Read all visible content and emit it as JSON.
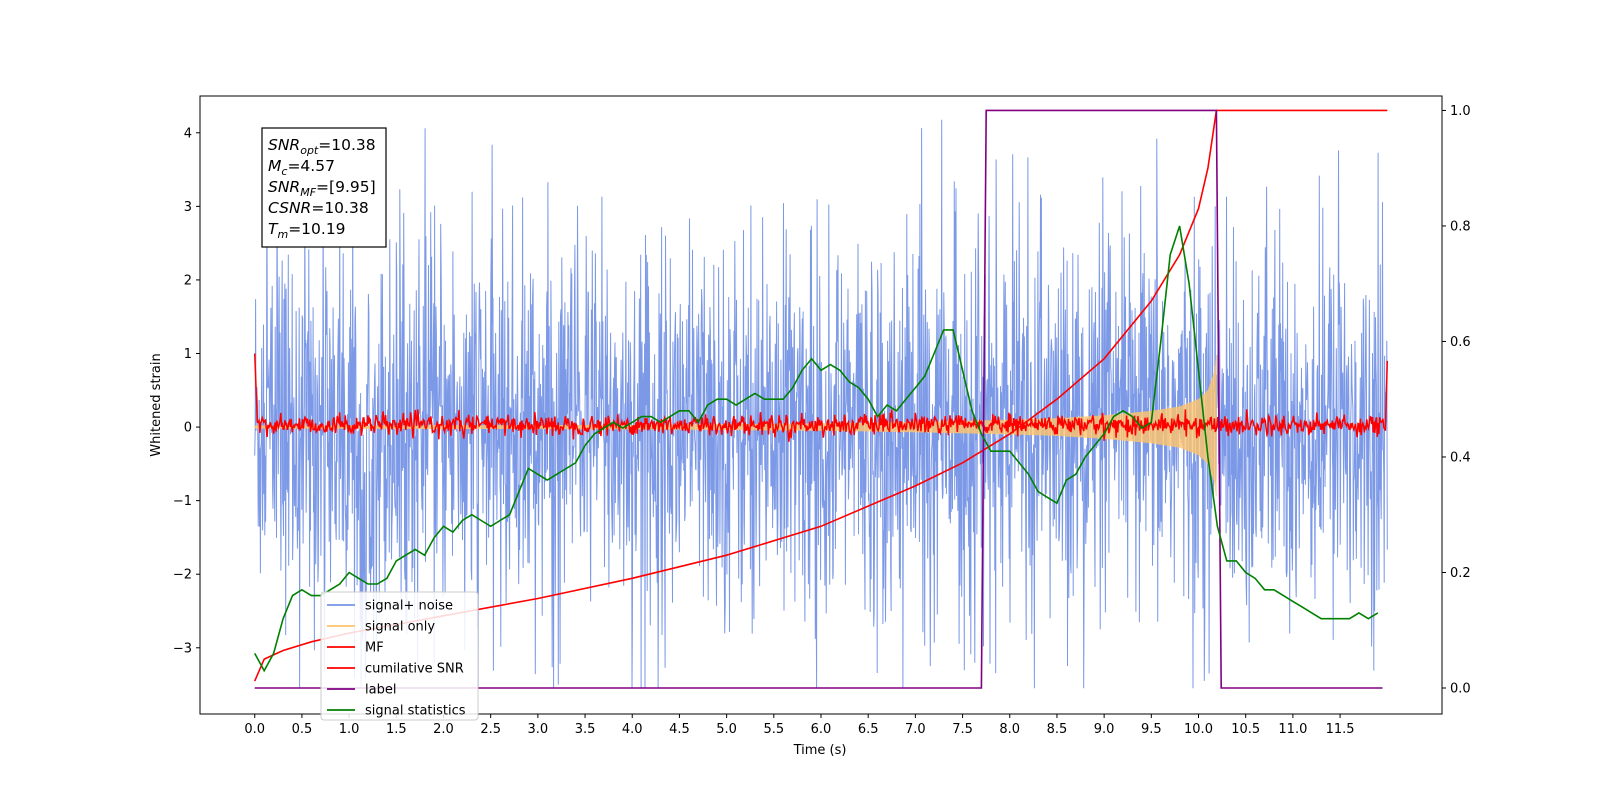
{
  "chart_data": {
    "type": "line",
    "xlabel": "Time (s)",
    "ylabel": "Whitened strain",
    "xlim": [
      -0.58,
      12.58
    ],
    "ylim": [
      -3.9,
      4.5
    ],
    "y2lim": [
      -0.045,
      1.025
    ],
    "x_ticks": [
      "0.0",
      "0.5",
      "1.0",
      "1.5",
      "2.0",
      "2.5",
      "3.0",
      "3.5",
      "4.0",
      "4.5",
      "5.0",
      "5.5",
      "6.0",
      "6.5",
      "7.0",
      "7.5",
      "8.0",
      "8.5",
      "9.0",
      "9.5",
      "10.0",
      "10.5",
      "11.0",
      "11.5"
    ],
    "x_tick_values": [
      0,
      0.5,
      1,
      1.5,
      2,
      2.5,
      3,
      3.5,
      4,
      4.5,
      5,
      5.5,
      6,
      6.5,
      7,
      7.5,
      8,
      8.5,
      9,
      9.5,
      10,
      10.5,
      11,
      11.5
    ],
    "y_ticks": [
      "−3",
      "−2",
      "−1",
      "0",
      "1",
      "2",
      "3",
      "4"
    ],
    "y_tick_values": [
      -3,
      -2,
      -1,
      0,
      1,
      2,
      3,
      4
    ],
    "y2_ticks": [
      "0.0",
      "0.2",
      "0.4",
      "0.6",
      "0.8",
      "1.0"
    ],
    "y2_tick_values": [
      0,
      0.2,
      0.4,
      0.6,
      0.8,
      1.0
    ],
    "annotation": [
      {
        "base": "SNR",
        "sub": "opt",
        "rest": "=10.38"
      },
      {
        "base": "M",
        "sub": "c",
        "rest": "=4.57"
      },
      {
        "base": "SNR",
        "sub": "MF",
        "rest": "=[9.95]"
      },
      {
        "base": "CSNR",
        "sub": "",
        "rest": "=10.38"
      },
      {
        "base": "T",
        "sub": "m",
        "rest": "=10.19"
      }
    ],
    "legend": {
      "placement": "lower-left",
      "entries": [
        {
          "label": "signal+ noise",
          "color": "#7594e6"
        },
        {
          "label": "signal only",
          "color": "#ffc46b"
        },
        {
          "label": "MF",
          "color": "#ff0000"
        },
        {
          "label": "cumilative SNR",
          "color": "#ff0000"
        },
        {
          "label": "label",
          "color": "#800080"
        },
        {
          "label": "signal statistics",
          "color": "#008000"
        }
      ]
    },
    "series": [
      {
        "name": "signal+ noise",
        "axis": "left",
        "color": "#7594e6",
        "description": "whitened noisy strain, approx ±1.5 sigma band, spikes to about ±4 over t=0.0–12.0 s"
      },
      {
        "name": "signal only",
        "axis": "left",
        "color": "#ffc46b",
        "envelope_x": [
          0,
          2,
          4,
          6,
          7,
          8,
          8.5,
          9,
          9.5,
          9.8,
          10.0,
          10.1,
          10.17,
          10.19
        ],
        "envelope_y": [
          0.02,
          0.025,
          0.03,
          0.05,
          0.07,
          0.1,
          0.12,
          0.16,
          0.22,
          0.28,
          0.38,
          0.5,
          0.75,
          0.98
        ]
      },
      {
        "name": "MF",
        "axis": "left",
        "color": "#ff0000",
        "description": "matched-filter output, noise around 0 within ±0.2, edge values about 1.0 at t=0 and 0.9 at t=12"
      },
      {
        "name": "cumilative SNR",
        "axis": "right",
        "color": "#ff0000",
        "x": [
          0,
          0.1,
          0.3,
          0.6,
          1.0,
          1.5,
          2.0,
          3.0,
          4.0,
          5.0,
          6.0,
          7.0,
          7.5,
          8.0,
          8.5,
          9.0,
          9.5,
          9.8,
          10.0,
          10.1,
          10.19,
          12.0
        ],
        "y": [
          0.012,
          0.05,
          0.065,
          0.08,
          0.095,
          0.11,
          0.125,
          0.155,
          0.19,
          0.23,
          0.28,
          0.35,
          0.39,
          0.44,
          0.5,
          0.57,
          0.67,
          0.75,
          0.83,
          0.9,
          1.0,
          1.0
        ]
      },
      {
        "name": "label",
        "axis": "right",
        "color": "#800080",
        "x": [
          0.0,
          7.7,
          7.75,
          10.19,
          10.24,
          11.95
        ],
        "y": [
          0,
          0,
          1,
          1,
          0,
          0
        ]
      },
      {
        "name": "signal statistics",
        "axis": "right",
        "color": "#008000",
        "x": [
          0.0,
          0.1,
          0.2,
          0.3,
          0.4,
          0.5,
          0.6,
          0.7,
          0.8,
          0.9,
          1.0,
          1.1,
          1.2,
          1.3,
          1.4,
          1.5,
          1.6,
          1.7,
          1.8,
          1.9,
          2.0,
          2.1,
          2.2,
          2.3,
          2.4,
          2.5,
          2.6,
          2.7,
          2.8,
          2.9,
          3.0,
          3.1,
          3.2,
          3.3,
          3.4,
          3.5,
          3.6,
          3.7,
          3.8,
          3.9,
          4.0,
          4.1,
          4.2,
          4.3,
          4.4,
          4.5,
          4.6,
          4.7,
          4.8,
          4.9,
          5.0,
          5.1,
          5.2,
          5.3,
          5.4,
          5.5,
          5.6,
          5.7,
          5.8,
          5.9,
          6.0,
          6.1,
          6.2,
          6.3,
          6.4,
          6.5,
          6.6,
          6.7,
          6.8,
          6.9,
          7.0,
          7.1,
          7.2,
          7.3,
          7.4,
          7.5,
          7.6,
          7.7,
          7.8,
          7.9,
          8.0,
          8.1,
          8.2,
          8.3,
          8.4,
          8.5,
          8.6,
          8.7,
          8.8,
          8.9,
          9.0,
          9.1,
          9.2,
          9.3,
          9.4,
          9.5,
          9.6,
          9.7,
          9.8,
          9.9,
          10.0,
          10.1,
          10.2,
          10.3,
          10.4,
          10.5,
          10.6,
          10.7,
          10.8,
          10.9,
          11.0,
          11.1,
          11.2,
          11.3,
          11.4,
          11.5,
          11.6,
          11.7,
          11.8,
          11.9
        ],
        "y": [
          0.06,
          0.03,
          0.06,
          0.12,
          0.16,
          0.17,
          0.16,
          0.16,
          0.17,
          0.18,
          0.2,
          0.19,
          0.18,
          0.18,
          0.19,
          0.22,
          0.23,
          0.24,
          0.23,
          0.26,
          0.28,
          0.27,
          0.29,
          0.3,
          0.29,
          0.28,
          0.29,
          0.3,
          0.34,
          0.38,
          0.37,
          0.36,
          0.37,
          0.38,
          0.39,
          0.42,
          0.44,
          0.45,
          0.46,
          0.45,
          0.46,
          0.47,
          0.47,
          0.46,
          0.47,
          0.48,
          0.48,
          0.46,
          0.49,
          0.5,
          0.5,
          0.49,
          0.5,
          0.51,
          0.5,
          0.5,
          0.5,
          0.52,
          0.55,
          0.57,
          0.55,
          0.56,
          0.55,
          0.53,
          0.52,
          0.5,
          0.47,
          0.49,
          0.48,
          0.5,
          0.52,
          0.54,
          0.58,
          0.62,
          0.62,
          0.55,
          0.48,
          0.44,
          0.41,
          0.41,
          0.41,
          0.39,
          0.37,
          0.34,
          0.33,
          0.32,
          0.36,
          0.37,
          0.4,
          0.42,
          0.44,
          0.47,
          0.48,
          0.47,
          0.45,
          0.46,
          0.6,
          0.75,
          0.8,
          0.7,
          0.55,
          0.4,
          0.28,
          0.22,
          0.22,
          0.2,
          0.19,
          0.17,
          0.17,
          0.16,
          0.15,
          0.14,
          0.13,
          0.12,
          0.12,
          0.12,
          0.12,
          0.13,
          0.12,
          0.13
        ]
      }
    ]
  }
}
